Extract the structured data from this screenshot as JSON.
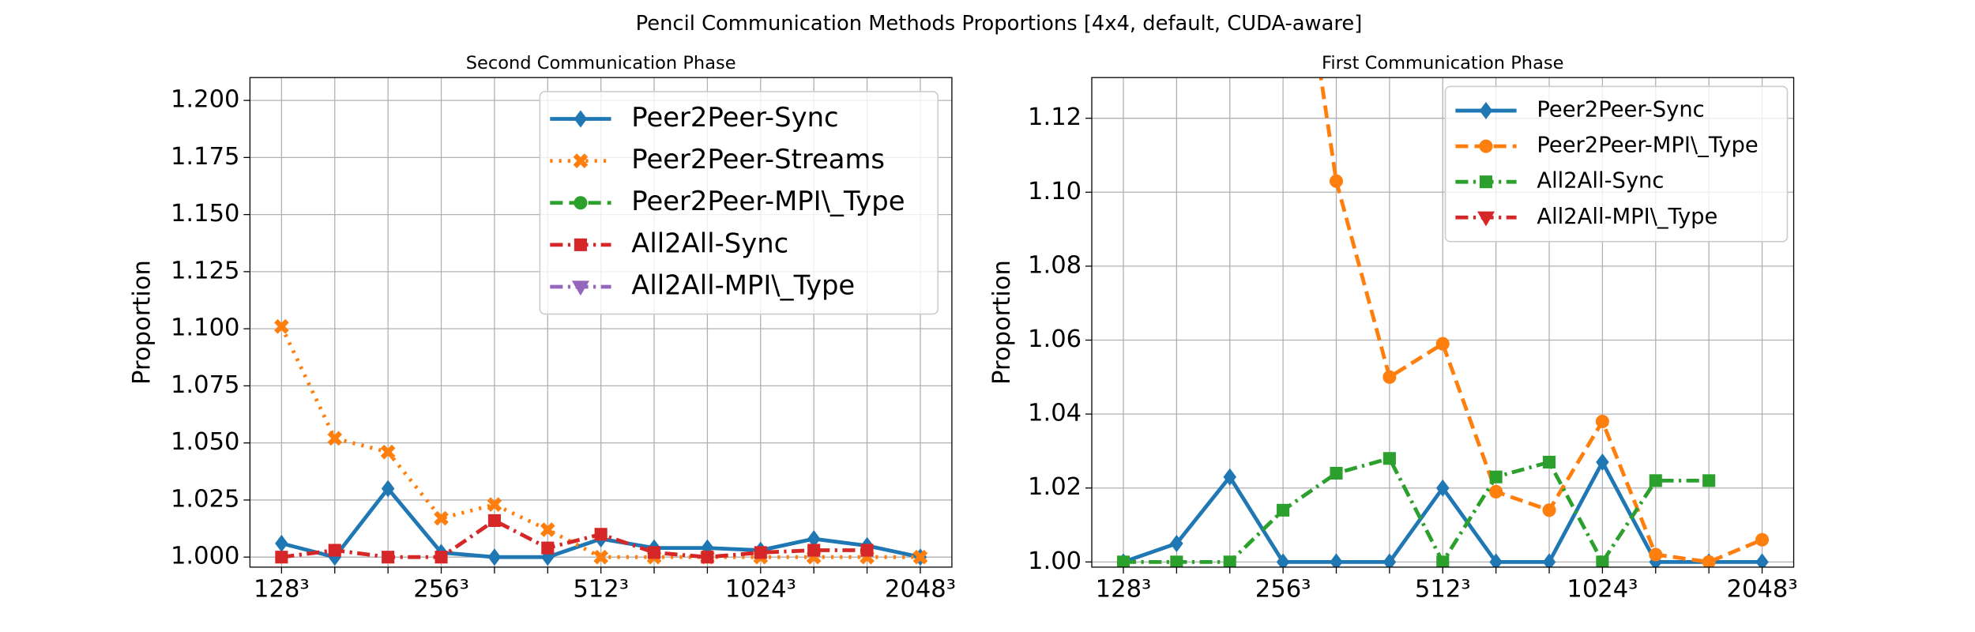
{
  "title": "Pencil Communication Methods Proportions [4x4, default, CUDA-aware]",
  "chart_data": [
    {
      "type": "line",
      "title": "Second Communication Phase",
      "ylabel": "Proportion",
      "categories": [
        "128³",
        null,
        null,
        "256³",
        null,
        null,
        "512³",
        null,
        null,
        "1024³",
        null,
        null,
        "2048³"
      ],
      "ylim": [
        0.9956,
        1.21
      ],
      "yticks": [
        {
          "value": 1.0,
          "label": "1.000"
        },
        {
          "value": 1.025,
          "label": "1.025"
        },
        {
          "value": 1.05,
          "label": "1.050"
        },
        {
          "value": 1.075,
          "label": "1.075"
        },
        {
          "value": 1.1,
          "label": "1.100"
        },
        {
          "value": 1.125,
          "label": "1.125"
        },
        {
          "value": 1.15,
          "label": "1.150"
        },
        {
          "value": 1.175,
          "label": "1.175"
        },
        {
          "value": 1.2,
          "label": "1.200"
        }
      ],
      "grid": true,
      "legend": "upper right",
      "series": [
        {
          "name": "Peer2Peer-Sync",
          "color": "#1f77b4",
          "values": [
            1.006,
            1.0,
            1.03,
            1.002,
            1.0,
            1.0,
            1.008,
            1.004,
            1.004,
            1.003,
            1.008,
            1.005,
            1.0
          ]
        },
        {
          "name": "Peer2Peer-Streams",
          "color": "#ff7f0e",
          "values": [
            1.101,
            1.052,
            1.046,
            1.017,
            1.023,
            1.012,
            1.0,
            1.0,
            1.0,
            1.0,
            1.0,
            1.0,
            1.0
          ]
        },
        {
          "name": "Peer2Peer-MPI\\_Type",
          "color": "#2ca02c",
          "values": [
            null,
            null,
            null,
            null,
            null,
            null,
            null,
            null,
            null,
            null,
            null,
            null,
            null
          ]
        },
        {
          "name": "All2All-Sync",
          "color": "#d62728",
          "values": [
            1.0,
            1.003,
            1.0,
            1.0,
            1.016,
            1.004,
            1.01,
            1.002,
            1.0,
            1.002,
            1.003,
            1.003,
            null
          ]
        },
        {
          "name": "All2All-MPI\\_Type",
          "color": "#9467bd",
          "values": [
            null,
            null,
            null,
            null,
            null,
            null,
            null,
            null,
            null,
            null,
            null,
            null,
            null
          ]
        }
      ]
    },
    {
      "type": "line",
      "title": "First Communication Phase",
      "ylabel": "Proportion",
      "categories": [
        "128³",
        null,
        null,
        "256³",
        null,
        null,
        "512³",
        null,
        null,
        "1024³",
        null,
        null,
        "2048³"
      ],
      "ylim": [
        0.9986,
        1.131
      ],
      "yticks": [
        {
          "value": 1.0,
          "label": "1.00"
        },
        {
          "value": 1.02,
          "label": "1.02"
        },
        {
          "value": 1.04,
          "label": "1.04"
        },
        {
          "value": 1.06,
          "label": "1.06"
        },
        {
          "value": 1.08,
          "label": "1.08"
        },
        {
          "value": 1.1,
          "label": "1.10"
        },
        {
          "value": 1.12,
          "label": "1.12"
        }
      ],
      "grid": true,
      "legend": "upper right",
      "series": [
        {
          "name": "Peer2Peer-Sync",
          "color": "#1f77b4",
          "values": [
            1.0,
            1.005,
            1.023,
            1.0,
            1.0,
            1.0,
            1.02,
            1.0,
            1.0,
            1.027,
            1.0,
            1.0,
            1.0
          ]
        },
        {
          "name": "Peer2Peer-MPI\\_Type",
          "color": "#ff7f0e",
          "values": [
            null,
            null,
            null,
            1.2,
            1.103,
            1.05,
            1.059,
            1.019,
            1.014,
            1.038,
            1.002,
            1.0,
            1.006
          ]
        },
        {
          "name": "All2All-Sync",
          "color": "#2ca02c",
          "values": [
            1.0,
            1.0,
            1.0,
            1.014,
            1.024,
            1.028,
            1.0,
            1.023,
            1.027,
            1.0,
            1.022,
            1.022,
            null
          ]
        },
        {
          "name": "All2All-MPI\\_Type",
          "color": "#d62728",
          "values": [
            null,
            null,
            null,
            null,
            null,
            null,
            null,
            null,
            null,
            null,
            null,
            null,
            null
          ]
        }
      ]
    }
  ]
}
